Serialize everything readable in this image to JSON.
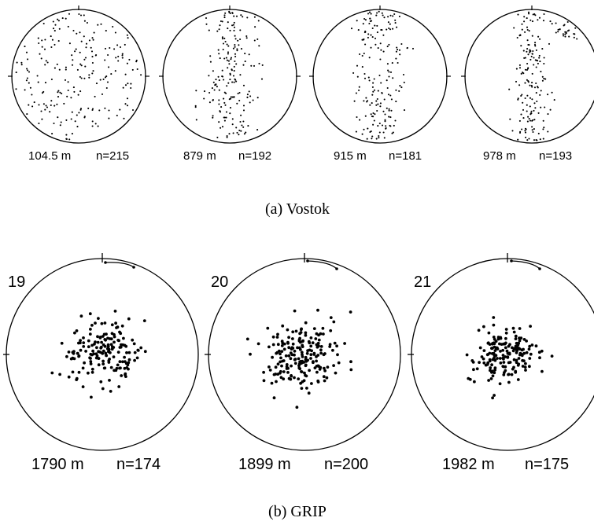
{
  "panels": {
    "vostok": {
      "caption": "(a) Vostok",
      "nets": [
        {
          "depth": "104.5 m",
          "n": "n=215",
          "count": 215,
          "pattern": "broad",
          "seed": 11
        },
        {
          "depth": "879 m",
          "n": "n=192",
          "count": 192,
          "pattern": "girdle",
          "seed": 23
        },
        {
          "depth": "915 m",
          "n": "n=181",
          "count": 181,
          "pattern": "girdle",
          "seed": 37
        },
        {
          "depth": "978 m",
          "n": "n=193",
          "count": 193,
          "pattern": "narrow-girdle",
          "seed": 51
        }
      ]
    },
    "grip": {
      "caption": "(b) GRIP",
      "nets": [
        {
          "number": "19",
          "depth": "1790 m",
          "n": "n=174",
          "count": 174,
          "pattern": "cluster",
          "seed": 61
        },
        {
          "number": "20",
          "depth": "1899 m",
          "n": "n=200",
          "count": 200,
          "pattern": "cluster",
          "seed": 73
        },
        {
          "number": "21",
          "depth": "1982 m",
          "n": "n=175",
          "count": 175,
          "pattern": "cluster-tight",
          "seed": 89
        }
      ]
    }
  },
  "colors": {
    "ink": "#000000",
    "background": "#ffffff"
  }
}
